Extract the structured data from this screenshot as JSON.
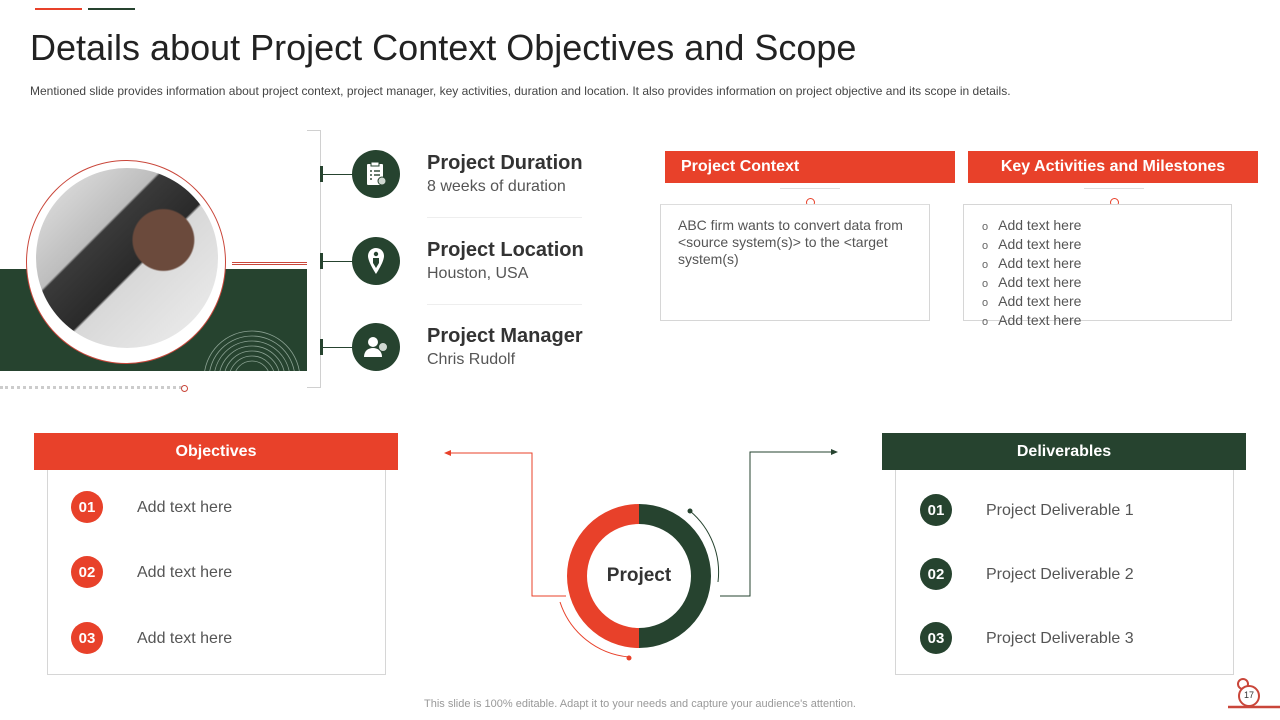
{
  "title": "Details about Project Context Objectives and Scope",
  "subtitle": "Mentioned slide provides information about project context, project manager, key activities, duration and location. It also provides information on project objective and its scope in details.",
  "colors": {
    "accent": "#E8412A",
    "dark_green": "#26432F"
  },
  "info": [
    {
      "title": "Project Duration",
      "value": "8 weeks of duration",
      "icon": "checklist-clock-icon"
    },
    {
      "title": "Project Location",
      "value": "Houston, USA",
      "icon": "location-pin-icon"
    },
    {
      "title": "Project Manager",
      "value": "Chris Rudolf",
      "icon": "person-clock-icon"
    }
  ],
  "context": {
    "header": "Project Context",
    "text": "ABC firm wants to convert data from <source system(s)> to the <target system(s)"
  },
  "activities": {
    "header": "Key Activities and Milestones",
    "items": [
      "Add text here",
      "Add text here",
      "Add text here",
      "Add text here",
      "Add text here",
      "Add text here"
    ]
  },
  "objectives": {
    "header": "Objectives",
    "items": [
      {
        "num": "01",
        "text": "Add text here"
      },
      {
        "num": "02",
        "text": "Add text here"
      },
      {
        "num": "03",
        "text": "Add text here"
      }
    ]
  },
  "center": {
    "label": "Project"
  },
  "deliverables": {
    "header": "Deliverables",
    "items": [
      {
        "num": "01",
        "text": "Project Deliverable 1"
      },
      {
        "num": "02",
        "text": "Project Deliverable 2"
      },
      {
        "num": "03",
        "text": "Project Deliverable 3"
      }
    ]
  },
  "footer": "This slide is 100% editable. Adapt it to your needs and capture your audience's attention.",
  "page_number": "17"
}
